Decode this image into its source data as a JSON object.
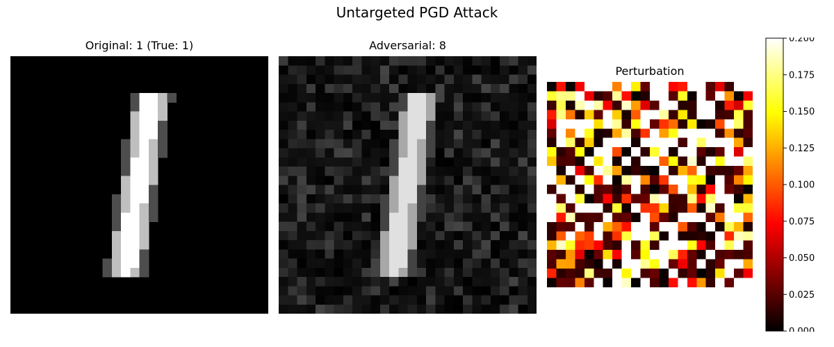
{
  "suptitle": "Untargeted PGD Attack",
  "panels": [
    {
      "title": "Original: 1 (True: 1)"
    },
    {
      "title": "Adversarial: 8"
    },
    {
      "title": "Perturbation"
    }
  ],
  "colorbar": {
    "colormap": "hot",
    "range": [
      0.0,
      0.2
    ],
    "ticks": [
      "0.000",
      "0.025",
      "0.050",
      "0.075",
      "0.100",
      "0.125",
      "0.150",
      "0.175",
      "0.200"
    ]
  },
  "chart_data": [
    {
      "type": "heatmap",
      "title": "Original: 1 (True: 1)",
      "colormap": "gray",
      "grid_size": [
        28,
        28
      ],
      "description": "MNIST digit 1, a slanted vertical stroke"
    },
    {
      "type": "heatmap",
      "title": "Adversarial: 8",
      "colormap": "gray",
      "grid_size": [
        28,
        28
      ]
    },
    {
      "type": "heatmap",
      "title": "Perturbation",
      "colormap": "hot",
      "grid_size": [
        22,
        22
      ],
      "vmin": 0.0,
      "vmax": 0.2
    }
  ]
}
